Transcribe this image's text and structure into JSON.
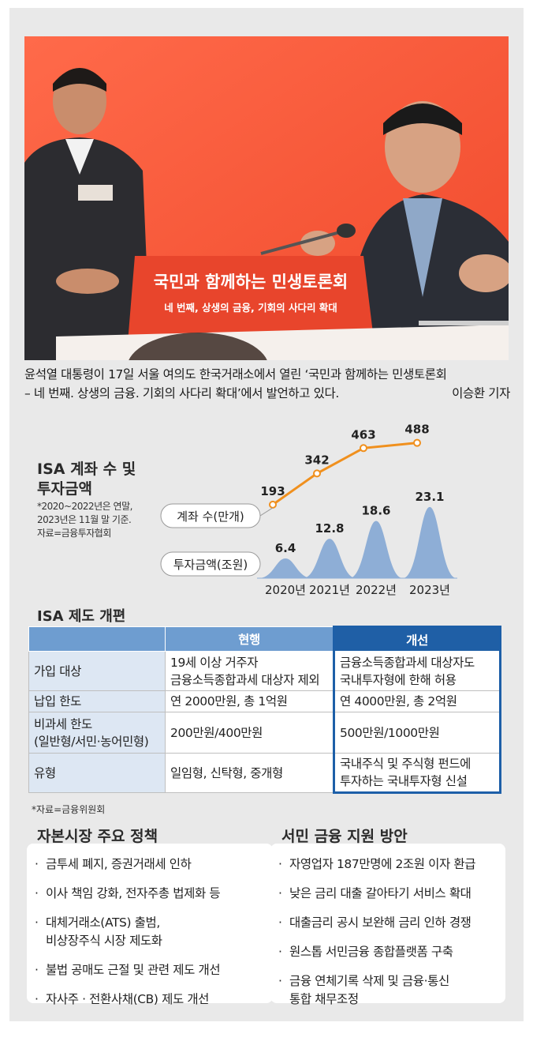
{
  "caption": {
    "line1": "윤석열 대통령이 17일 서울 여의도 한국거래소에서 열린 ‘국민과 함께하는 민생토론회",
    "line2": "– 네 번째. 상생의 금융. 기회의 사다리 확대’에서 발언하고 있다.",
    "credit": "이승환 기자"
  },
  "photo": {
    "banner_main": "국민과 함께하는 민생토론회",
    "banner_sub": "네 번째, 상생의 금융, 기회의 사다리 확대",
    "colors": {
      "backdrop": "#ff5a3c",
      "podium": "#e8452c"
    }
  },
  "chart": {
    "title_line1": "ISA 계좌 수 및",
    "title_line2": "투자금액",
    "note_line1": "*2020~2022년은 연말,",
    "note_line2": "2023년은 11월 말 기준.",
    "note_line3": "자료=금융투자협회"
  },
  "chart_data": {
    "type": "line",
    "categories": [
      "2020년",
      "2021년",
      "2022년",
      "2023년"
    ],
    "series": [
      {
        "name": "계좌 수(만개)",
        "type": "line",
        "values": [
          193,
          342,
          463,
          488
        ],
        "color": "#f0901e"
      },
      {
        "name": "투자금액(조원)",
        "type": "area",
        "values": [
          6.4,
          12.8,
          18.6,
          23.1
        ],
        "color": "#8eaed6"
      }
    ]
  },
  "table": {
    "title": "ISA 제도 개편",
    "headers": [
      "",
      "현행",
      "개선"
    ],
    "rows": [
      {
        "label": "가입 대상",
        "current": [
          "19세 이상 거주자",
          "금융소득종합과세 대상자 제외"
        ],
        "improved": [
          "금융소득종합과세 대상자도",
          "국내투자형에 한해 허용"
        ]
      },
      {
        "label": "납입 한도",
        "current": [
          "연 2000만원, 총 1억원"
        ],
        "improved": [
          "연 4000만원, 총 2억원"
        ]
      },
      {
        "label": "비과세 한도",
        "label2": "(일반형/서민·농어민형)",
        "current": [
          "200만원/400만원"
        ],
        "improved": [
          "500만원/1000만원"
        ]
      },
      {
        "label": "유형",
        "current": [
          "일임형, 신탁형, 중개형"
        ],
        "improved": [
          "국내주식 및 주식형 펀드에",
          "투자하는 국내투자형 신설"
        ]
      }
    ],
    "source": "*자료=금융위원회"
  },
  "capital_market": {
    "title": "자본시장 주요 정책",
    "items": [
      "금투세 폐지, 증권거래세 인하",
      "이사 책임 강화, 전자주총 법제화 등",
      "대체거래소(ATS) 출범,",
      "비상장주식 시장 제도화",
      "불법 공매도 근절 및 관련 제도 개선",
      "자사주 · 전환사채(CB) 제도 개선"
    ]
  },
  "finance_support": {
    "title": "서민 금융 지원 방안",
    "items": [
      "자영업자 187만명에 2조원 이자 환급",
      "낮은 금리 대출 갈아타기 서비스 확대",
      "대출금리 공시 보완해 금리 인하 경쟁",
      "원스톱 서민금융 종합플랫폼 구축",
      "금융 연체기록 삭제 및 금융·통신",
      "통합 채무조정"
    ]
  }
}
